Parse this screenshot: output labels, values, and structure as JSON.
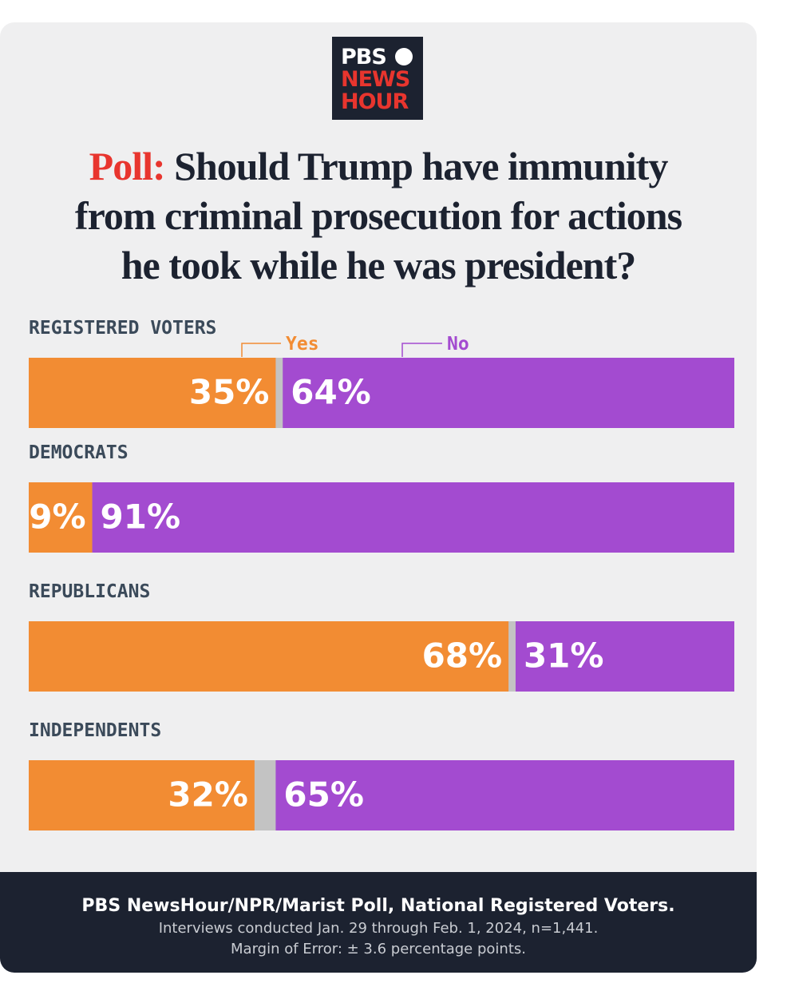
{
  "logo": [
    "PBS",
    "NEWS",
    "HOUR"
  ],
  "chart_data": {
    "type": "stacked-bar-horizontal",
    "title_prefix": "Poll:",
    "title_lines": [
      "Should Trump have immunity",
      "from criminal prosecution for actions",
      "he took while he was president?"
    ],
    "categories": [
      "REGISTERED VOTERS",
      "DEMOCRATS",
      "REPUBLICANS",
      "INDEPENDENTS"
    ],
    "xlim": [
      0,
      100
    ],
    "series": [
      {
        "name": "Yes",
        "color": "#f28c33",
        "values": [
          35,
          9,
          68,
          32
        ],
        "value_labels": [
          "35%",
          "9%",
          "68%",
          "32%"
        ]
      },
      {
        "name": "No",
        "color": "#a34bd0",
        "values": [
          64,
          91,
          31,
          65
        ],
        "value_labels": [
          "64%",
          "91%",
          "31%",
          "65%"
        ]
      }
    ]
  },
  "footer": [
    "PBS NewsHour/NPR/Marist Poll, National Registered Voters.",
    "Interviews conducted Jan. 29 through Feb. 1, 2024, n=1,441.",
    "Margin of Error:  ± 3.6 percentage points."
  ]
}
